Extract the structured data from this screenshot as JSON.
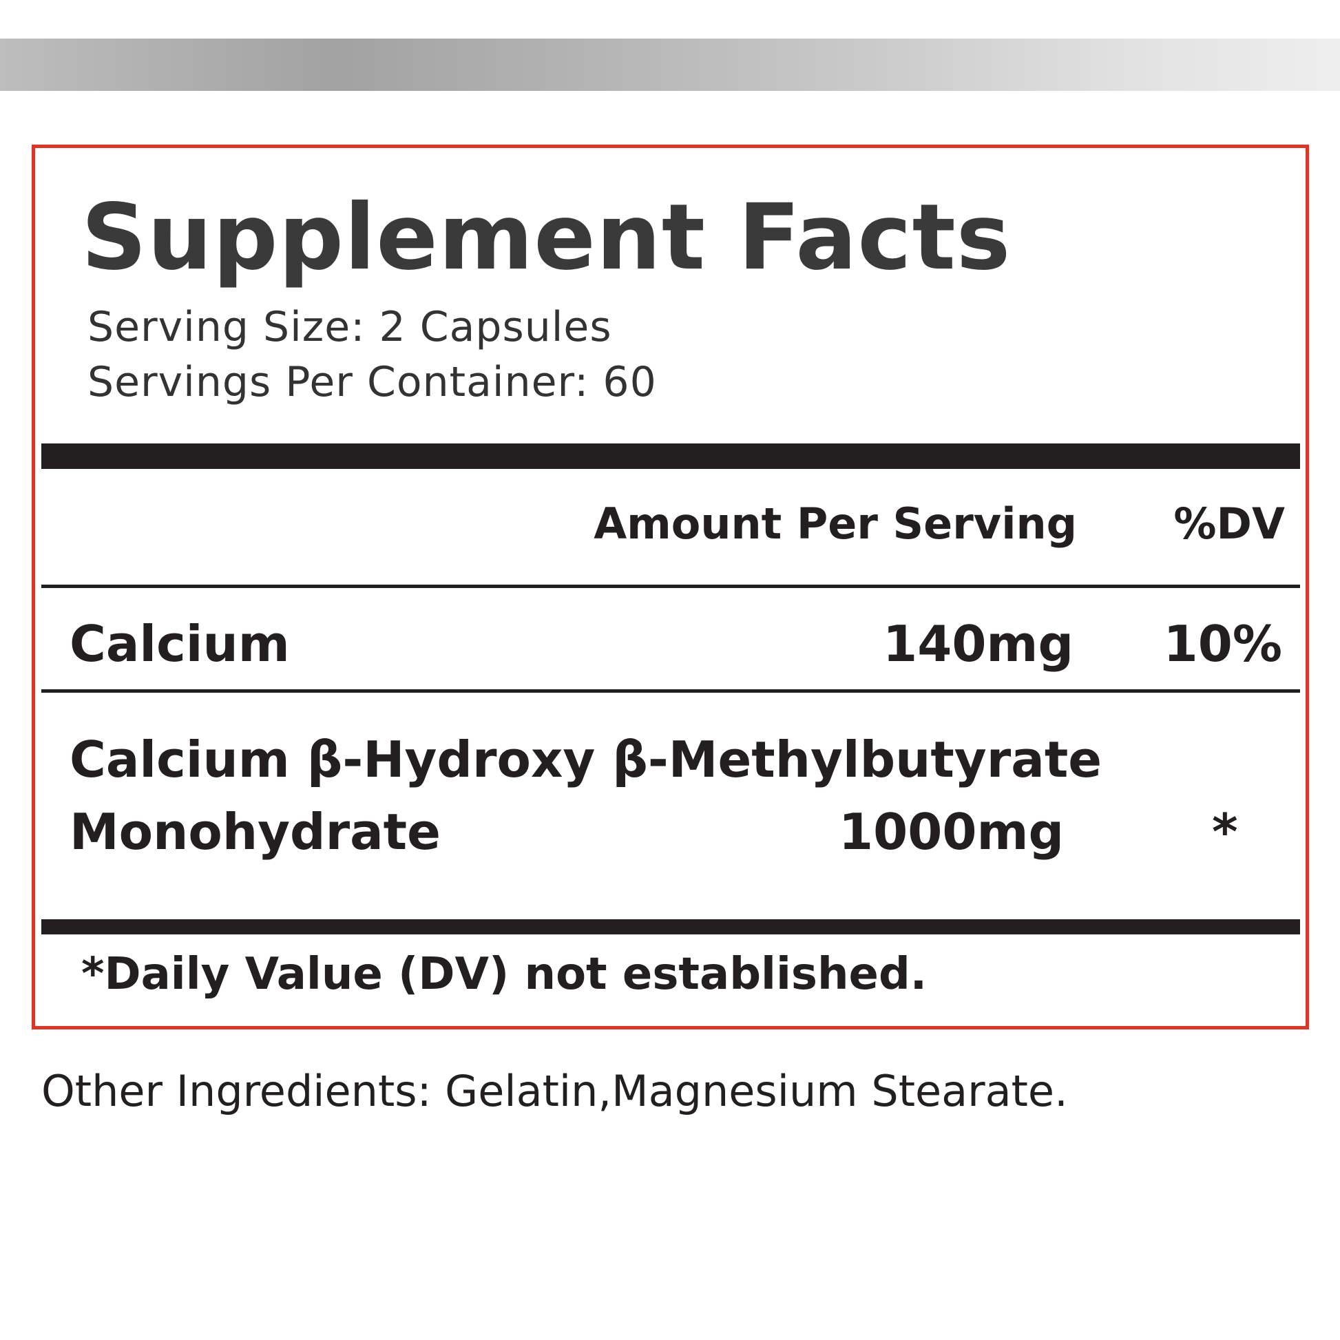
{
  "label": {
    "title": "Supplement Facts",
    "serving_size": "Serving Size: 2 Capsules",
    "servings_per_container": "Servings Per Container: 60",
    "columns": {
      "amount": "Amount Per Serving",
      "dv": "%DV"
    },
    "rows": [
      {
        "name": "Calcium",
        "amount": "140mg",
        "dv": "10%"
      },
      {
        "name_line1": "Calcium β-Hydroxy β-Methylbutyrate",
        "name_line2": "Monohydrate",
        "amount": "1000mg",
        "dv": "*"
      }
    ],
    "footnote": "*Daily Value (DV) not established."
  },
  "other_ingredients": "Other Ingredients: Gelatin,Magnesium Stearate.",
  "colors": {
    "border": "#e03424",
    "text": "#231f20",
    "title": "#3a3a3a"
  }
}
